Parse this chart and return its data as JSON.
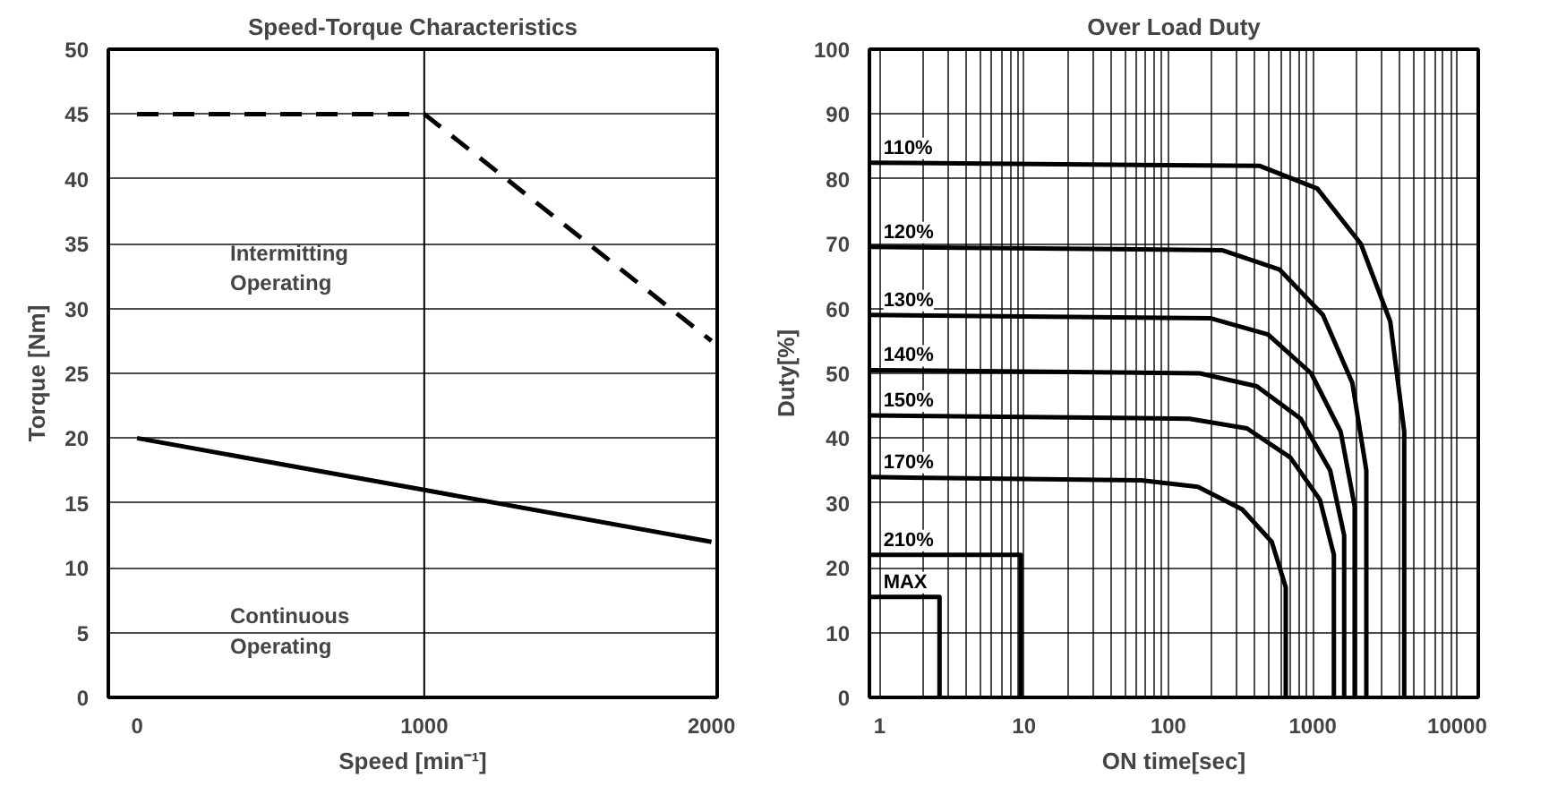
{
  "chart_data": [
    {
      "type": "line",
      "title": "Speed-Torque Characteristics",
      "xlabel": "Speed [min⁻¹]",
      "ylabel": "Torque [Nm]",
      "xlim": [
        -100,
        2020
      ],
      "ylim": [
        0,
        50
      ],
      "xticks": [
        0,
        1000,
        2000
      ],
      "yticks": [
        0,
        5,
        10,
        15,
        20,
        25,
        30,
        35,
        40,
        45,
        50
      ],
      "grid": "y",
      "x": [
        0,
        1000,
        2000
      ],
      "ref_lines": [
        {
          "axis": "x",
          "value": 1000
        }
      ],
      "annotations": [
        "Intermitting\nOperating",
        "Continuous\nOperating"
      ],
      "series": [
        {
          "color": "#000000",
          "values": [
            45,
            45,
            27.5
          ],
          "line_style": "dashed"
        },
        {
          "color": "#000000",
          "values": [
            20,
            16,
            12
          ],
          "line_style": "solid"
        }
      ]
    },
    {
      "type": "line",
      "title": "Over Load Duty",
      "xlabel": "ON time[sec]",
      "ylabel": "Duty[%]",
      "log": "x",
      "xlim": [
        0.85,
        14000
      ],
      "ylim": [
        0,
        100
      ],
      "xticks": [
        1,
        {
          "value": 2,
          "label": null
        },
        {
          "value": 3,
          "label": null
        },
        {
          "value": 4,
          "label": null
        },
        {
          "value": 5,
          "label": null
        },
        {
          "value": 6,
          "label": null
        },
        {
          "value": 7,
          "label": null
        },
        {
          "value": 8,
          "label": null
        },
        {
          "value": 9,
          "label": null
        },
        10,
        {
          "value": 20,
          "label": null
        },
        {
          "value": 30,
          "label": null
        },
        {
          "value": 40,
          "label": null
        },
        {
          "value": 50,
          "label": null
        },
        {
          "value": 60,
          "label": null
        },
        {
          "value": 70,
          "label": null
        },
        {
          "value": 80,
          "label": null
        },
        {
          "value": 90,
          "label": null
        },
        100,
        {
          "value": 200,
          "label": null
        },
        {
          "value": 300,
          "label": null
        },
        {
          "value": 400,
          "label": null
        },
        {
          "value": 500,
          "label": null
        },
        {
          "value": 600,
          "label": null
        },
        {
          "value": 700,
          "label": null
        },
        {
          "value": 800,
          "label": null
        },
        {
          "value": 900,
          "label": null
        },
        1000,
        {
          "value": 2000,
          "label": null
        },
        {
          "value": 3000,
          "label": null
        },
        {
          "value": 4000,
          "label": null
        },
        {
          "value": 5000,
          "label": null
        },
        {
          "value": 6000,
          "label": null
        },
        {
          "value": 7000,
          "label": null
        },
        {
          "value": 8000,
          "label": null
        },
        {
          "value": 9000,
          "label": null
        },
        10000
      ],
      "yticks": [
        0,
        10,
        20,
        30,
        40,
        50,
        60,
        70,
        80,
        90,
        100
      ],
      "grid": true,
      "series": [
        {
          "name": "110%",
          "color": "#000000",
          "x": [
            0.85,
            430,
            1075,
            2150,
            3440,
            4300,
            4300
          ],
          "values": [
            82.5,
            82,
            78.5,
            70,
            58,
            41,
            0
          ]
        },
        {
          "name": "120%",
          "color": "#000000",
          "x": [
            0.85,
            235,
            590,
            1175,
            1880,
            2350,
            2350
          ],
          "values": [
            69.5,
            69,
            66,
            59,
            48.5,
            35,
            0
          ]
        },
        {
          "name": "130%",
          "color": "#000000",
          "x": [
            0.85,
            195,
            490,
            975,
            1560,
            1950,
            1950
          ],
          "values": [
            59,
            58.5,
            56,
            50,
            41,
            29.5,
            0
          ]
        },
        {
          "name": "140%",
          "color": "#000000",
          "x": [
            0.85,
            165,
            410,
            825,
            1320,
            1650,
            1650
          ],
          "values": [
            50.5,
            50,
            48,
            43,
            35,
            25,
            0
          ]
        },
        {
          "name": "150%",
          "color": "#000000",
          "x": [
            0.85,
            140,
            350,
            700,
            1120,
            1400,
            1400
          ],
          "values": [
            43.5,
            43,
            41.5,
            37,
            30.5,
            22,
            0
          ]
        },
        {
          "name": "170%",
          "color": "#000000",
          "x": [
            0.85,
            65,
            160,
            325,
            520,
            650,
            650
          ],
          "values": [
            34,
            33.5,
            32.5,
            29,
            24,
            17,
            0
          ]
        },
        {
          "name": "210%",
          "color": "#000000",
          "x": [
            0.85,
            9.5,
            9.5
          ],
          "values": [
            22,
            22,
            0
          ]
        },
        {
          "name": "MAX",
          "color": "#000000",
          "x": [
            0.85,
            2.6,
            2.6
          ],
          "values": [
            15.5,
            15.5,
            0
          ]
        }
      ]
    }
  ]
}
